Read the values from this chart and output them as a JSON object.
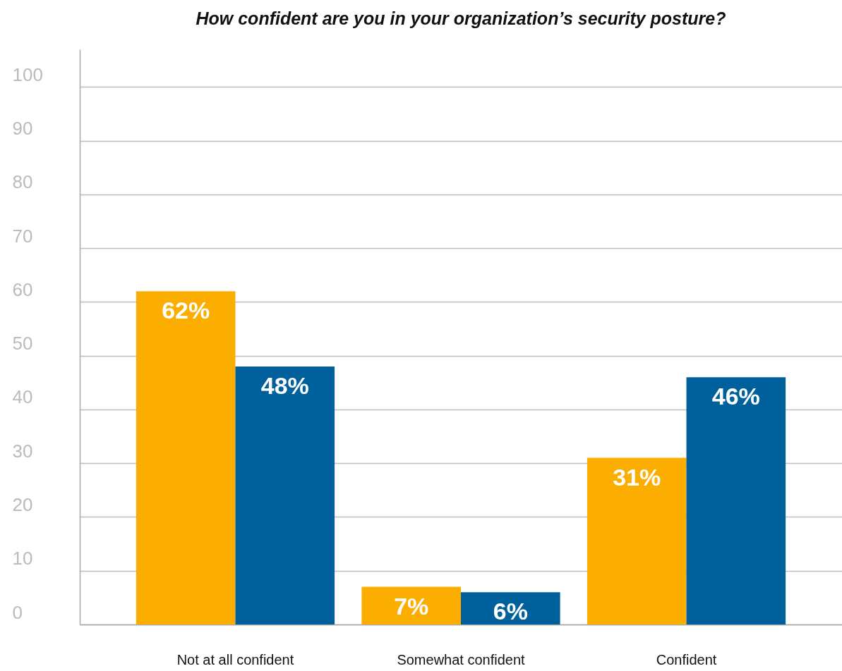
{
  "chart_data": {
    "type": "bar",
    "title": "How confident are you in your organization’s security posture?",
    "categories": [
      "Not at all confident",
      "Somewhat confident",
      "Confident"
    ],
    "series": [
      {
        "color": "#fbad00",
        "values": [
          62,
          7,
          31
        ],
        "value_labels": [
          "62%",
          "7%",
          "31%"
        ]
      },
      {
        "color": "#00609c",
        "values": [
          48,
          6,
          46
        ],
        "value_labels": [
          "48%",
          "6%",
          "46%"
        ]
      }
    ],
    "ylim": [
      0,
      107
    ],
    "yticks": [
      0,
      10,
      20,
      30,
      40,
      50,
      60,
      70,
      80,
      90,
      100
    ],
    "grid": "y"
  }
}
